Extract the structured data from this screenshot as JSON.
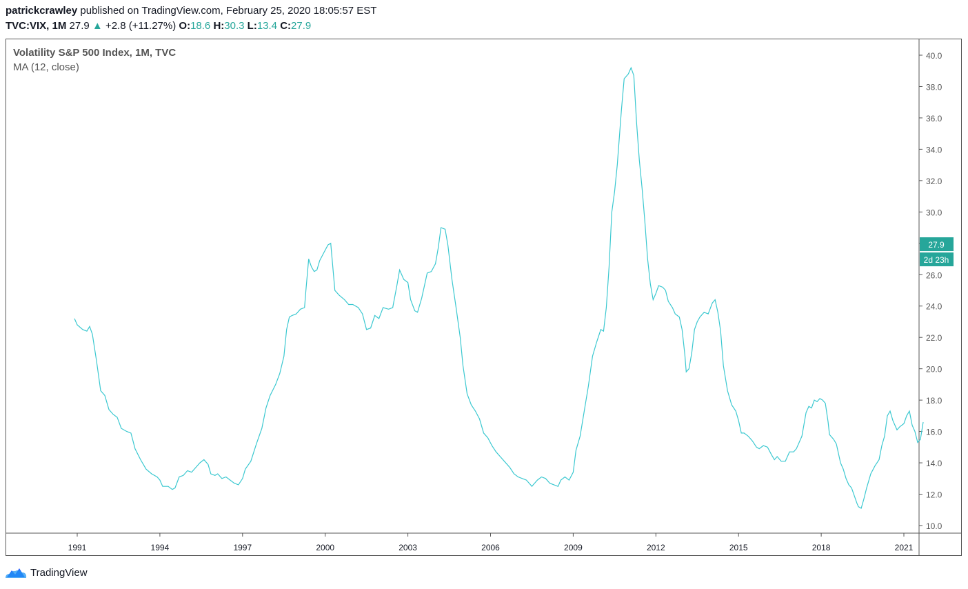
{
  "header": {
    "author": "patrickcrawley",
    "published": "published on TradingView.com, February 25, 2020 18:05:57 EST",
    "symbol": "TVC:VIX, 1M",
    "last": "27.9",
    "change": "+2.8 (+11.27%)",
    "o_label": "O:",
    "o_value": "18.6",
    "h_label": "H:",
    "h_value": "30.3",
    "l_label": "L:",
    "l_value": "13.4",
    "c_label": "C:",
    "c_value": "27.9"
  },
  "brand": {
    "name": "TradingView",
    "icon": "tradingview-cloud-icon"
  },
  "colors": {
    "line": "#3bc8d0",
    "accent": "#26a69a",
    "axis": "#555555"
  },
  "chart_data": {
    "type": "line",
    "title": "Volatility S&P 500 Index, 1M, TVC",
    "indicator": "MA (12, close)",
    "x_ticks": [
      "1991",
      "1994",
      "1997",
      "2000",
      "2003",
      "2006",
      "2009",
      "2012",
      "2015",
      "2018",
      "2021"
    ],
    "y_ticks": [
      "10.0",
      "12.0",
      "14.0",
      "16.0",
      "18.0",
      "20.0",
      "22.0",
      "24.0",
      "26.0",
      "28.0",
      "30.0",
      "32.0",
      "34.0",
      "36.0",
      "38.0",
      "40.0"
    ],
    "ylim": [
      10,
      40
    ],
    "xlim": [
      1991,
      2021
    ],
    "last_price_label": "27.9",
    "countdown_label": "2d 23h",
    "last_value": 27.9,
    "series": [
      {
        "points": [
          [
            1990.9,
            23.2
          ],
          [
            1991.0,
            22.8
          ],
          [
            1991.2,
            22.5
          ],
          [
            1991.35,
            22.4
          ],
          [
            1991.45,
            22.7
          ],
          [
            1991.55,
            22.2
          ],
          [
            1991.7,
            20.5
          ],
          [
            1991.85,
            18.6
          ],
          [
            1992.0,
            18.3
          ],
          [
            1992.15,
            17.4
          ],
          [
            1992.3,
            17.1
          ],
          [
            1992.45,
            16.9
          ],
          [
            1992.6,
            16.2
          ],
          [
            1992.8,
            16.0
          ],
          [
            1992.95,
            15.9
          ],
          [
            1993.1,
            14.9
          ],
          [
            1993.3,
            14.2
          ],
          [
            1993.5,
            13.6
          ],
          [
            1993.7,
            13.3
          ],
          [
            1993.9,
            13.1
          ],
          [
            1994.0,
            12.9
          ],
          [
            1994.1,
            12.5
          ],
          [
            1994.3,
            12.5
          ],
          [
            1994.45,
            12.3
          ],
          [
            1994.55,
            12.4
          ],
          [
            1994.7,
            13.1
          ],
          [
            1994.85,
            13.2
          ],
          [
            1995.0,
            13.5
          ],
          [
            1995.15,
            13.4
          ],
          [
            1995.3,
            13.7
          ],
          [
            1995.45,
            14.0
          ],
          [
            1995.6,
            14.2
          ],
          [
            1995.75,
            13.9
          ],
          [
            1995.85,
            13.3
          ],
          [
            1996.0,
            13.2
          ],
          [
            1996.1,
            13.3
          ],
          [
            1996.25,
            13.0
          ],
          [
            1996.4,
            13.1
          ],
          [
            1996.55,
            12.9
          ],
          [
            1996.7,
            12.7
          ],
          [
            1996.85,
            12.6
          ],
          [
            1997.0,
            13.0
          ],
          [
            1997.1,
            13.6
          ],
          [
            1997.3,
            14.1
          ],
          [
            1997.5,
            15.2
          ],
          [
            1997.7,
            16.2
          ],
          [
            1997.85,
            17.5
          ],
          [
            1998.0,
            18.3
          ],
          [
            1998.2,
            19.0
          ],
          [
            1998.35,
            19.7
          ],
          [
            1998.5,
            20.8
          ],
          [
            1998.6,
            22.5
          ],
          [
            1998.7,
            23.3
          ],
          [
            1998.8,
            23.4
          ],
          [
            1998.95,
            23.5
          ],
          [
            1999.1,
            23.8
          ],
          [
            1999.25,
            23.9
          ],
          [
            1999.3,
            25.0
          ],
          [
            1999.4,
            27.0
          ],
          [
            1999.5,
            26.5
          ],
          [
            1999.6,
            26.2
          ],
          [
            1999.7,
            26.3
          ],
          [
            1999.8,
            26.9
          ],
          [
            1999.95,
            27.4
          ],
          [
            2000.1,
            27.9
          ],
          [
            2000.2,
            28.0
          ],
          [
            2000.35,
            25.0
          ],
          [
            2000.5,
            24.7
          ],
          [
            2000.7,
            24.4
          ],
          [
            2000.85,
            24.1
          ],
          [
            2001.0,
            24.1
          ],
          [
            2001.2,
            23.9
          ],
          [
            2001.35,
            23.5
          ],
          [
            2001.5,
            22.5
          ],
          [
            2001.65,
            22.6
          ],
          [
            2001.8,
            23.4
          ],
          [
            2001.95,
            23.2
          ],
          [
            2002.1,
            23.9
          ],
          [
            2002.3,
            23.8
          ],
          [
            2002.45,
            23.9
          ],
          [
            2002.6,
            25.3
          ],
          [
            2002.7,
            26.3
          ],
          [
            2002.85,
            25.7
          ],
          [
            2003.0,
            25.5
          ],
          [
            2003.1,
            24.4
          ],
          [
            2003.25,
            23.7
          ],
          [
            2003.35,
            23.6
          ],
          [
            2003.5,
            24.5
          ],
          [
            2003.6,
            25.3
          ],
          [
            2003.7,
            26.1
          ],
          [
            2003.85,
            26.2
          ],
          [
            2004.0,
            26.7
          ],
          [
            2004.1,
            27.7
          ],
          [
            2004.2,
            29.0
          ],
          [
            2004.35,
            28.9
          ],
          [
            2004.45,
            27.9
          ],
          [
            2004.6,
            25.7
          ],
          [
            2004.75,
            23.9
          ],
          [
            2004.9,
            22.0
          ],
          [
            2005.0,
            20.2
          ],
          [
            2005.15,
            18.4
          ],
          [
            2005.3,
            17.7
          ],
          [
            2005.45,
            17.3
          ],
          [
            2005.6,
            16.8
          ],
          [
            2005.75,
            15.9
          ],
          [
            2005.9,
            15.6
          ],
          [
            2006.05,
            15.1
          ],
          [
            2006.2,
            14.7
          ],
          [
            2006.35,
            14.4
          ],
          [
            2006.5,
            14.1
          ],
          [
            2006.6,
            13.9
          ],
          [
            2006.7,
            13.7
          ],
          [
            2006.85,
            13.3
          ],
          [
            2007.0,
            13.1
          ],
          [
            2007.15,
            13.0
          ],
          [
            2007.3,
            12.9
          ],
          [
            2007.4,
            12.7
          ],
          [
            2007.5,
            12.5
          ],
          [
            2007.55,
            12.6
          ],
          [
            2007.7,
            12.9
          ],
          [
            2007.85,
            13.1
          ],
          [
            2008.0,
            13.0
          ],
          [
            2008.15,
            12.7
          ],
          [
            2008.3,
            12.6
          ],
          [
            2008.45,
            12.5
          ],
          [
            2008.55,
            12.9
          ],
          [
            2008.7,
            13.1
          ],
          [
            2008.85,
            12.9
          ],
          [
            2009.0,
            13.4
          ],
          [
            2009.1,
            14.8
          ],
          [
            2009.25,
            15.7
          ],
          [
            2009.4,
            17.3
          ],
          [
            2009.55,
            18.9
          ],
          [
            2009.7,
            20.8
          ],
          [
            2009.85,
            21.7
          ],
          [
            2010.0,
            22.5
          ],
          [
            2010.1,
            22.4
          ],
          [
            2010.2,
            23.9
          ],
          [
            2010.3,
            26.5
          ],
          [
            2010.4,
            30.0
          ],
          [
            2010.5,
            31.3
          ],
          [
            2010.6,
            33.0
          ],
          [
            2010.75,
            36.5
          ],
          [
            2010.85,
            38.5
          ],
          [
            2011.0,
            38.8
          ],
          [
            2011.1,
            39.2
          ],
          [
            2011.2,
            38.7
          ],
          [
            2011.3,
            35.7
          ],
          [
            2011.4,
            33.3
          ],
          [
            2011.5,
            31.5
          ],
          [
            2011.6,
            29.4
          ],
          [
            2011.7,
            27.0
          ],
          [
            2011.8,
            25.4
          ],
          [
            2011.9,
            24.4
          ],
          [
            2012.0,
            24.8
          ],
          [
            2012.1,
            25.3
          ],
          [
            2012.25,
            25.2
          ],
          [
            2012.35,
            25.0
          ],
          [
            2012.45,
            24.3
          ],
          [
            2012.6,
            23.9
          ],
          [
            2012.7,
            23.5
          ],
          [
            2012.85,
            23.3
          ],
          [
            2012.95,
            22.5
          ],
          [
            2013.05,
            20.9
          ],
          [
            2013.1,
            19.8
          ],
          [
            2013.2,
            20.0
          ],
          [
            2013.3,
            21.0
          ],
          [
            2013.4,
            22.5
          ],
          [
            2013.5,
            23.0
          ],
          [
            2013.6,
            23.3
          ],
          [
            2013.75,
            23.6
          ],
          [
            2013.9,
            23.5
          ],
          [
            2014.05,
            24.2
          ],
          [
            2014.15,
            24.4
          ],
          [
            2014.25,
            23.6
          ],
          [
            2014.35,
            22.4
          ],
          [
            2014.45,
            20.2
          ],
          [
            2014.6,
            18.6
          ],
          [
            2014.75,
            17.7
          ],
          [
            2014.9,
            17.3
          ],
          [
            2015.0,
            16.7
          ],
          [
            2015.1,
            15.9
          ],
          [
            2015.2,
            15.9
          ],
          [
            2015.35,
            15.7
          ],
          [
            2015.5,
            15.4
          ],
          [
            2015.65,
            15.0
          ],
          [
            2015.75,
            14.9
          ],
          [
            2015.9,
            15.1
          ],
          [
            2016.05,
            15.0
          ],
          [
            2016.2,
            14.5
          ],
          [
            2016.3,
            14.2
          ],
          [
            2016.4,
            14.4
          ],
          [
            2016.55,
            14.1
          ],
          [
            2016.7,
            14.1
          ],
          [
            2016.85,
            14.7
          ],
          [
            2017.0,
            14.7
          ],
          [
            2017.1,
            14.9
          ],
          [
            2017.2,
            15.3
          ],
          [
            2017.3,
            15.7
          ],
          [
            2017.45,
            17.2
          ],
          [
            2017.55,
            17.6
          ],
          [
            2017.65,
            17.5
          ],
          [
            2017.75,
            18.0
          ],
          [
            2017.85,
            17.9
          ],
          [
            2017.95,
            18.1
          ],
          [
            2018.05,
            18.0
          ],
          [
            2018.15,
            17.8
          ],
          [
            2018.25,
            16.6
          ],
          [
            2018.3,
            15.8
          ],
          [
            2018.45,
            15.5
          ],
          [
            2018.55,
            15.2
          ],
          [
            2018.7,
            14.0
          ],
          [
            2018.8,
            13.6
          ],
          [
            2018.9,
            13.0
          ],
          [
            2019.0,
            12.6
          ],
          [
            2019.1,
            12.4
          ],
          [
            2019.2,
            11.9
          ],
          [
            2019.3,
            11.4
          ],
          [
            2019.35,
            11.2
          ],
          [
            2019.45,
            11.1
          ],
          [
            2019.55,
            11.7
          ],
          [
            2019.65,
            12.4
          ],
          [
            2019.8,
            13.3
          ],
          [
            2019.95,
            13.8
          ],
          [
            2020.1,
            14.2
          ],
          [
            2020.2,
            15.1
          ],
          [
            2020.3,
            15.7
          ],
          [
            2020.4,
            17.0
          ],
          [
            2020.5,
            17.3
          ],
          [
            2020.6,
            16.7
          ],
          [
            2020.75,
            16.1
          ],
          [
            2020.85,
            16.3
          ],
          [
            2021.0,
            16.5
          ],
          [
            2021.1,
            17.0
          ],
          [
            2021.2,
            17.3
          ],
          [
            2021.3,
            16.4
          ],
          [
            2021.4,
            16.0
          ],
          [
            2021.5,
            15.3
          ],
          [
            2021.6,
            15.5
          ],
          [
            2021.7,
            16.6
          ]
        ]
      }
    ]
  }
}
